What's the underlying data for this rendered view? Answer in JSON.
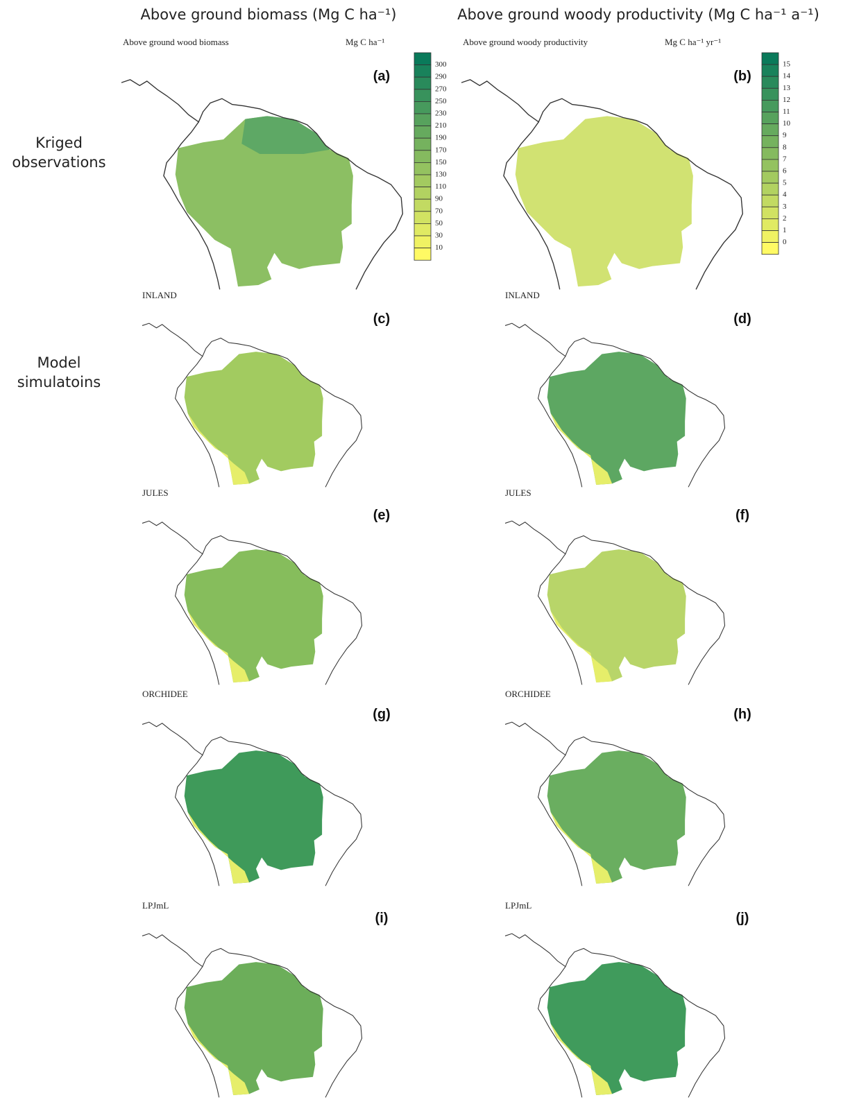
{
  "column_headers": [
    "Above ground biomass (Mg C ha⁻¹)",
    "Above ground woody productivity (Mg C ha⁻¹ a⁻¹)"
  ],
  "row_labels": [
    "Kriged observations",
    "Model simulatoins"
  ],
  "panels": [
    {
      "letter": "(a)",
      "title": "Above ground wood biomass",
      "unit": "Mg C ha⁻¹"
    },
    {
      "letter": "(b)",
      "title": "Above ground woody productivity",
      "unit": "Mg C ha⁻¹ yr⁻¹"
    },
    {
      "letter": "(c)",
      "title": "INLAND"
    },
    {
      "letter": "(d)",
      "title": "INLAND"
    },
    {
      "letter": "(e)",
      "title": "JULES"
    },
    {
      "letter": "(f)",
      "title": "JULES"
    },
    {
      "letter": "(g)",
      "title": "ORCHIDEE"
    },
    {
      "letter": "(h)",
      "title": "ORCHIDEE"
    },
    {
      "letter": "(i)",
      "title": "LPJmL"
    },
    {
      "letter": "(j)",
      "title": "LPJmL"
    }
  ],
  "colorbars": [
    {
      "labels": [
        300,
        290,
        270,
        250,
        230,
        210,
        190,
        170,
        150,
        130,
        110,
        90,
        70,
        50,
        30,
        10
      ]
    },
    {
      "labels": [
        15,
        14,
        13,
        12,
        11,
        10,
        9,
        8,
        7,
        6,
        5,
        4,
        3,
        2,
        1,
        0
      ]
    }
  ]
}
